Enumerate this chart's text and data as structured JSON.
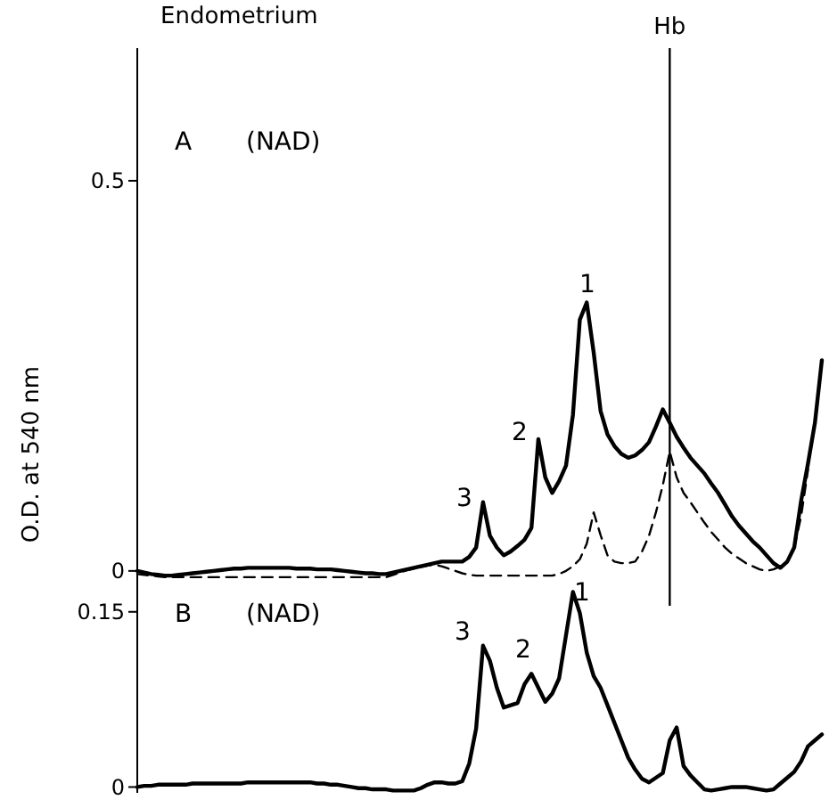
{
  "chart_data": [
    {
      "type": "line",
      "title": "Endometrium",
      "ylabel": "O.D. at 540 nm",
      "ylim": [
        -0.015,
        0.67
      ],
      "yticks": [
        0,
        0.5
      ],
      "categories": [
        null,
        null,
        null,
        null,
        null,
        null,
        null,
        null,
        null,
        null,
        null,
        null,
        null,
        null,
        null,
        null,
        null,
        null,
        null,
        null,
        null,
        null,
        null,
        null,
        null,
        null,
        null,
        null,
        null,
        null,
        null,
        null,
        null,
        null,
        null,
        null,
        null,
        null,
        null,
        null,
        null,
        null,
        null,
        null,
        null,
        null,
        null,
        null,
        null,
        null,
        null,
        null,
        null,
        null,
        null,
        null,
        null,
        null,
        null,
        null,
        null,
        null,
        null,
        null,
        null,
        null,
        null,
        null,
        null,
        null,
        null,
        null,
        null,
        null,
        null,
        null,
        null,
        "Hb",
        null,
        null,
        null,
        null,
        null,
        null,
        null,
        null,
        null,
        null,
        null,
        null,
        null,
        null,
        null,
        null,
        null,
        null,
        null,
        null,
        null,
        null
      ],
      "annotations": [
        "A",
        "(NAD)",
        "3",
        "2",
        "1"
      ],
      "ref_lines": [
        {
          "axis": "x",
          "value": "Hb"
        }
      ],
      "series": [
        {
          "color": "#000000",
          "line_style": "solid",
          "values": [
            0,
            -0.002,
            -0.004,
            -0.005,
            -0.006,
            -0.006,
            -0.005,
            -0.004,
            -0.003,
            -0.002,
            -0.001,
            0,
            0.001,
            0.002,
            0.003,
            0.003,
            0.004,
            0.004,
            0.004,
            0.004,
            0.004,
            0.004,
            0.004,
            0.003,
            0.003,
            0.003,
            0.002,
            0.002,
            0.002,
            0.001,
            0,
            -0.001,
            -0.002,
            -0.003,
            -0.003,
            -0.004,
            -0.004,
            -0.002,
            0,
            0.002,
            0.004,
            0.006,
            0.008,
            0.01,
            0.012,
            0.012,
            0.012,
            0.012,
            0.018,
            0.03,
            0.088,
            0.045,
            0.03,
            0.02,
            0.025,
            0.032,
            0.04,
            0.055,
            0.169,
            0.12,
            0.1,
            0.115,
            0.135,
            0.2,
            0.322,
            0.344,
            0.28,
            0.205,
            0.175,
            0.16,
            0.15,
            0.145,
            0.148,
            0.155,
            0.165,
            0.185,
            0.207,
            0.19,
            0.172,
            0.158,
            0.145,
            0.135,
            0.125,
            0.112,
            0.1,
            0.085,
            0.07,
            0.058,
            0.048,
            0.038,
            0.03,
            0.02,
            0.01,
            0.004,
            0.012,
            0.03,
            0.09,
            0.138,
            0.19,
            0.27
          ]
        },
        {
          "color": "#000000",
          "line_style": "dashed",
          "values": [
            -0.004,
            -0.005,
            -0.006,
            -0.007,
            -0.008,
            -0.008,
            -0.008,
            -0.008,
            -0.008,
            -0.008,
            -0.008,
            -0.008,
            -0.008,
            -0.008,
            -0.008,
            -0.008,
            -0.008,
            -0.008,
            -0.008,
            -0.008,
            -0.008,
            -0.008,
            -0.008,
            -0.008,
            -0.008,
            -0.008,
            -0.008,
            -0.008,
            -0.008,
            -0.008,
            -0.008,
            -0.008,
            -0.008,
            -0.008,
            -0.008,
            -0.008,
            -0.008,
            -0.005,
            -0.002,
            0.001,
            0.003,
            0.005,
            0.007,
            0.008,
            0.006,
            0.003,
            0,
            -0.003,
            -0.005,
            -0.006,
            -0.006,
            -0.006,
            -0.006,
            -0.006,
            -0.006,
            -0.006,
            -0.006,
            -0.006,
            -0.006,
            -0.006,
            -0.006,
            -0.004,
            0,
            0.006,
            0.015,
            0.035,
            0.075,
            0.046,
            0.02,
            0.012,
            0.01,
            0.01,
            0.012,
            0.025,
            0.045,
            0.075,
            0.11,
            0.153,
            0.12,
            0.1,
            0.088,
            0.075,
            0.062,
            0.05,
            0.04,
            0.03,
            0.022,
            0.016,
            0.01,
            0.006,
            0.002,
            0,
            0.002,
            0.006,
            0.012,
            0.03,
            0.07,
            0.13,
            null,
            null
          ]
        }
      ]
    },
    {
      "type": "line",
      "ylim": [
        -0.005,
        0.175
      ],
      "yticks": [
        0,
        0.15
      ],
      "tick_labels": "y",
      "categories": [
        null,
        null,
        null,
        null,
        null,
        null,
        null,
        null,
        null,
        null,
        null,
        null,
        null,
        null,
        null,
        null,
        null,
        null,
        null,
        null,
        null,
        null,
        null,
        null,
        null,
        null,
        null,
        null,
        null,
        null,
        null,
        null,
        null,
        null,
        null,
        null,
        null,
        null,
        null,
        null,
        null,
        null,
        null,
        null,
        null,
        null,
        null,
        null,
        null,
        null,
        null,
        null,
        null,
        null,
        null,
        null,
        null,
        null,
        null,
        null,
        null,
        null,
        null,
        null,
        null,
        null,
        null,
        null,
        null,
        null,
        null,
        null,
        null,
        null,
        null,
        null,
        null,
        null,
        null,
        null,
        null,
        null,
        null,
        null,
        null,
        null,
        null,
        null,
        null,
        null,
        null,
        null,
        null,
        null,
        null,
        null,
        null,
        null,
        null,
        null
      ],
      "annotations": [
        "B",
        "(NAD)",
        "3",
        "2",
        "1"
      ],
      "series": [
        {
          "color": "#000000",
          "line_style": "solid",
          "values": [
            0,
            0.001,
            0.001,
            0.002,
            0.002,
            0.002,
            0.002,
            0.002,
            0.003,
            0.003,
            0.003,
            0.003,
            0.003,
            0.003,
            0.003,
            0.003,
            0.004,
            0.004,
            0.004,
            0.004,
            0.004,
            0.004,
            0.004,
            0.004,
            0.004,
            0.004,
            0.003,
            0.003,
            0.002,
            0.002,
            0.001,
            0,
            -0.001,
            -0.001,
            -0.002,
            -0.002,
            -0.002,
            -0.003,
            -0.003,
            -0.003,
            -0.003,
            -0.001,
            0.002,
            0.004,
            0.004,
            0.003,
            0.003,
            0.005,
            0.02,
            0.05,
            0.121,
            0.108,
            0.085,
            0.068,
            0.07,
            0.072,
            0.088,
            0.097,
            0.085,
            0.073,
            0.08,
            0.093,
            0.13,
            0.167,
            0.149,
            0.115,
            0.095,
            0.085,
            0.07,
            0.055,
            0.04,
            0.025,
            0.015,
            0.007,
            0.004,
            0.008,
            0.012,
            0.04,
            0.051,
            0.018,
            0.01,
            0.004,
            -0.002,
            -0.003,
            -0.002,
            -0.001,
            0,
            0,
            0,
            -0.001,
            -0.002,
            -0.003,
            -0.002,
            0.003,
            0.008,
            0.013,
            0.022,
            0.035,
            0.04,
            0.045
          ]
        }
      ]
    }
  ]
}
